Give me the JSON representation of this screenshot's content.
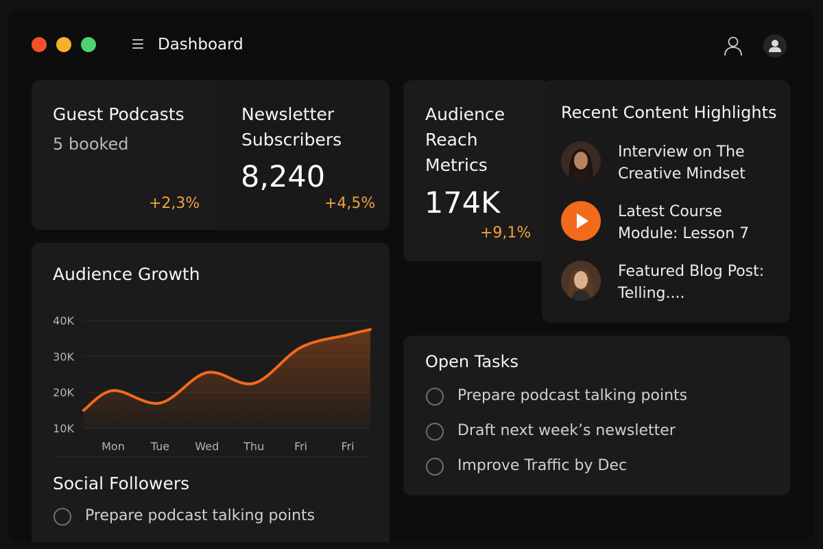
{
  "app": {
    "title": "Dashboard"
  },
  "colors": {
    "accent": "#f26a1b",
    "positive_change": "#f0a040",
    "background": "#0d0d0d",
    "card": "#1b1b1b"
  },
  "icons": {
    "menu": "hamburger-icon",
    "account": "user-outline-icon",
    "profile": "user-avatar-icon",
    "play": "play-icon"
  },
  "guest_podcasts": {
    "title": "Guest Podcasts",
    "subtitle": "5 booked",
    "change": "+2,3%"
  },
  "newsletter": {
    "title_line1": "Newsletter",
    "title_line2": "Subscribers",
    "value": "8,240",
    "change": "+4,5%"
  },
  "audience_reach": {
    "title_line1": "Audience",
    "title_line2": "Reach",
    "title_line3": "Metrics",
    "value": "174K",
    "change": "+9,1%"
  },
  "highlights": {
    "title": "Recent Content Highlights",
    "items": [
      {
        "line1": "Interview on The",
        "line2": "Creative Mindset",
        "thumb": "woman-portrait-1"
      },
      {
        "line1": "Latest Course",
        "line2": "Module: Lesson 7",
        "thumb": "play-icon"
      },
      {
        "line1": "Featured Blog Post:",
        "line2": "Telling....",
        "thumb": "woman-portrait-2"
      }
    ]
  },
  "growth": {
    "title": "Audience Growth"
  },
  "chart_data": {
    "type": "area",
    "title": "Audience Growth",
    "categories": [
      "Mon",
      "Tue",
      "Wed",
      "Thu",
      "Fri",
      "Fri"
    ],
    "series": [
      {
        "values": [
          20500,
          17000,
          25500,
          22500,
          32500,
          36000
        ]
      }
    ],
    "ylim": [
      10000,
      40000
    ],
    "y_ticks": [
      "40K",
      "30K",
      "20K",
      "10K"
    ],
    "y_tick_values": [
      40000,
      30000,
      20000,
      10000
    ],
    "grid": true,
    "color": "#f26a1b"
  },
  "social": {
    "title": "Social Followers",
    "item": "Prepare podcast talking points"
  },
  "tasks": {
    "title": "Open Tasks",
    "items": [
      "Prepare podcast talking points",
      "Draft next week’s newsletter",
      "Improve Traffic by Dec"
    ]
  }
}
